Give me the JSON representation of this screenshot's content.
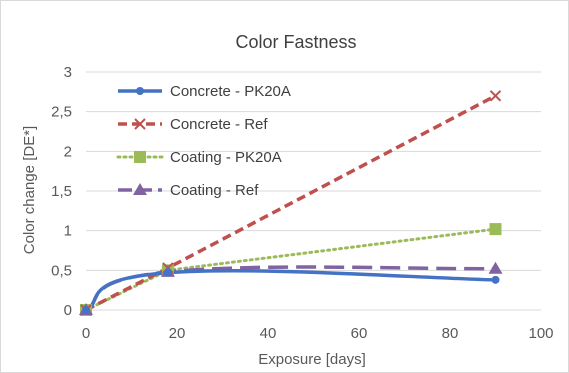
{
  "chart_data": {
    "type": "line",
    "title": "Color Fastness",
    "xlabel": "Exposure [days]",
    "ylabel": "Color change [DE*]",
    "xlim": [
      0,
      100
    ],
    "ylim": [
      0,
      3
    ],
    "x_ticks": [
      "0",
      "20",
      "40",
      "60",
      "80",
      "100"
    ],
    "y_ticks": [
      "0",
      "0,5",
      "1",
      "1,5",
      "2",
      "2,5",
      "3"
    ],
    "grid": "horizontal",
    "legend_position": "top-left",
    "series": [
      {
        "name": "Concrete - PK20A",
        "x": [
          0,
          18,
          90
        ],
        "y": [
          0,
          0.47,
          0.38
        ],
        "color": "#4472c4",
        "line": "solid",
        "marker": "circle",
        "curve": "smooth"
      },
      {
        "name": "Concrete - Ref",
        "x": [
          0,
          18,
          90
        ],
        "y": [
          0,
          0.53,
          2.7
        ],
        "color": "#c0504d",
        "line": "dashed",
        "marker": "x",
        "curve": "straight"
      },
      {
        "name": "Coating - PK20A",
        "x": [
          0,
          18,
          90
        ],
        "y": [
          0,
          0.5,
          1.02
        ],
        "color": "#9bbb59",
        "line": "dotted",
        "marker": "square",
        "curve": "straight"
      },
      {
        "name": "Coating - Ref",
        "x": [
          0,
          18,
          90
        ],
        "y": [
          0,
          0.48,
          0.52
        ],
        "color": "#8064a2",
        "line": "longdash",
        "marker": "triangle",
        "curve": "smooth"
      }
    ]
  }
}
